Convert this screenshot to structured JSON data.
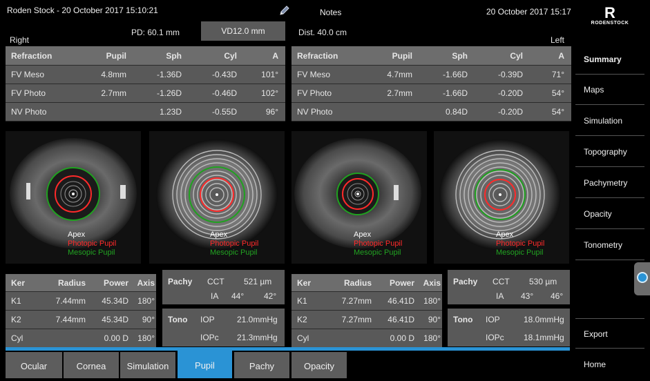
{
  "header": {
    "title": "Roden Stock - 20 October 2017 15:10:21",
    "notes": "Notes",
    "date": "20 October 2017 15:17",
    "pd": "PD:  60.1 mm",
    "vd": "VD12.0 mm",
    "dist": "Dist. 40.0 cm",
    "right_label": "Right",
    "left_label": "Left"
  },
  "refraction": {
    "headers": [
      "Refraction",
      "Pupil",
      "Sph",
      "Cyl",
      "A"
    ],
    "right": [
      [
        "FV Meso",
        "4.8mm",
        "-1.36D",
        "-0.43D",
        "101°"
      ],
      [
        "FV Photo",
        "2.7mm",
        "-1.26D",
        "-0.46D",
        "102°"
      ],
      [
        "NV Photo",
        "",
        "1.23D",
        "-0.55D",
        "96°"
      ]
    ],
    "left": [
      [
        "FV Meso",
        "4.7mm",
        "-1.66D",
        "-0.39D",
        "71°"
      ],
      [
        "FV Photo",
        "2.7mm",
        "-1.66D",
        "-0.20D",
        "54°"
      ],
      [
        "NV Photo",
        "",
        "0.84D",
        "-0.20D",
        "54°"
      ]
    ]
  },
  "legend": {
    "apex": "Apex",
    "photopic": "Photopic Pupil",
    "mesopic": "Mesopic Pupil"
  },
  "ker": {
    "headers": [
      "Ker",
      "Radius",
      "Power",
      "Axis"
    ],
    "right": [
      [
        "K1",
        "7.44mm",
        "45.34D",
        "180°"
      ],
      [
        "K2",
        "7.44mm",
        "45.34D",
        "90°"
      ],
      [
        "Cyl",
        "",
        "0.00 D",
        "180°"
      ]
    ],
    "left": [
      [
        "K1",
        "7.27mm",
        "46.41D",
        "180°"
      ],
      [
        "K2",
        "7.27mm",
        "46.41D",
        "90°"
      ],
      [
        "Cyl",
        "",
        "0.00 D",
        "180°"
      ]
    ]
  },
  "pachy": {
    "label": "Pachy",
    "cct_label": "CCT",
    "ia_label": "IA",
    "right": {
      "cct": "521 µm",
      "ia1": "44°",
      "ia2": "42°"
    },
    "left": {
      "cct": "530 µm",
      "ia1": "43°",
      "ia2": "46°"
    }
  },
  "tono": {
    "label": "Tono",
    "iop_label": "IOP",
    "iopc_label": "IOPc",
    "right": {
      "iop": "21.0mmHg",
      "iopc": "21.3mmHg"
    },
    "left": {
      "iop": "18.0mmHg",
      "iopc": "18.1mmHg"
    }
  },
  "tabs": [
    "Ocular",
    "Cornea",
    "Simulation",
    "Pupil",
    "Pachy",
    "Opacity"
  ],
  "active_tab": "Pupil",
  "sidebar": {
    "logo_mark": "R",
    "logo_brand": "RODENSTOCK",
    "items": [
      "Summary",
      "Maps",
      "Simulation",
      "Topography",
      "Pachymetry",
      "Opacity",
      "Tonometry"
    ],
    "export": "Export",
    "home": "Home"
  },
  "colors": {
    "accent": "#2a93d5",
    "panel": "#595959",
    "photopic": "#ff2a2a",
    "mesopic": "#22a322"
  },
  "icons": {
    "notes": "pencil-icon",
    "drawer": "drawer-handle-icon"
  }
}
